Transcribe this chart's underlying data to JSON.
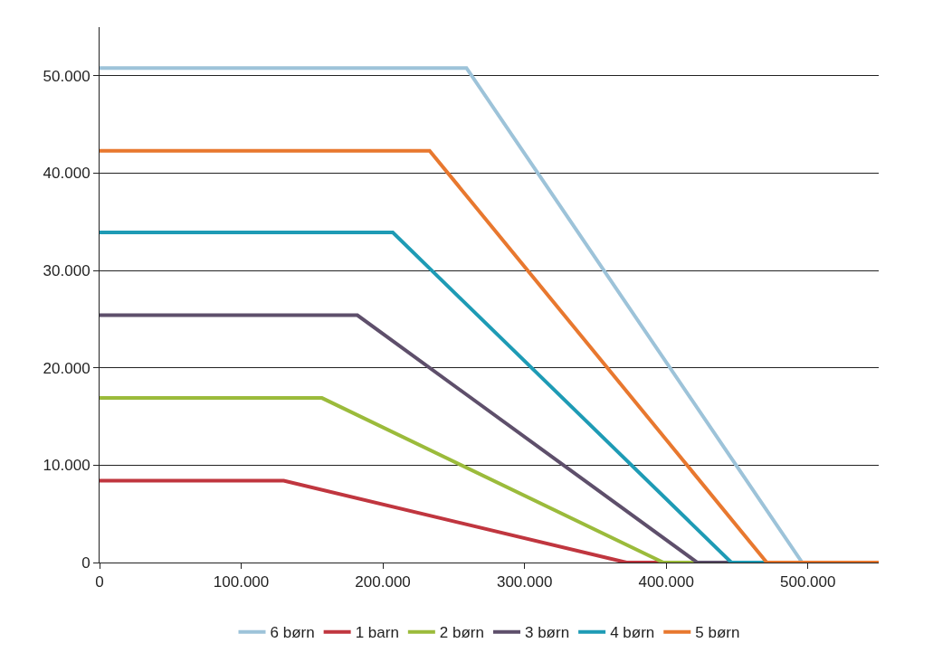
{
  "chart_data": {
    "type": "line",
    "series": [
      {
        "name": "6 børn",
        "color": "#9dc3d9",
        "x": [
          0,
          259000,
          496000,
          550000
        ],
        "values": [
          50800,
          50800,
          0,
          0
        ]
      },
      {
        "name": "1 barn",
        "color": "#c0363f",
        "x": [
          0,
          130000,
          372000,
          550000
        ],
        "values": [
          8400,
          8400,
          0,
          0
        ]
      },
      {
        "name": "2 børn",
        "color": "#9bbb3b",
        "x": [
          0,
          157000,
          398000,
          550000
        ],
        "values": [
          16900,
          16900,
          0,
          0
        ]
      },
      {
        "name": "3 børn",
        "color": "#5e4f6b",
        "x": [
          0,
          182000,
          422000,
          550000
        ],
        "values": [
          25400,
          25400,
          0,
          0
        ]
      },
      {
        "name": "4 børn",
        "color": "#1e9bb5",
        "x": [
          0,
          207000,
          446000,
          550000
        ],
        "values": [
          33900,
          33900,
          0,
          0
        ]
      },
      {
        "name": "5 børn",
        "color": "#e8782f",
        "x": [
          0,
          233000,
          471000,
          550000
        ],
        "values": [
          42300,
          42300,
          0,
          0
        ]
      }
    ],
    "xlim": [
      0,
      550000
    ],
    "xticks": [
      0,
      {
        "value": 100000,
        "label": "100.000"
      },
      {
        "value": 200000,
        "label": "200.000"
      },
      {
        "value": 300000,
        "label": "300.000"
      },
      {
        "value": 400000,
        "label": "400.000"
      },
      {
        "value": 500000,
        "label": "500.000"
      }
    ],
    "ylim": [
      0,
      55000
    ],
    "yticks": [
      0,
      {
        "value": 10000,
        "label": "10.000"
      },
      {
        "value": 20000,
        "label": "20.000"
      },
      {
        "value": 30000,
        "label": "30.000"
      },
      {
        "value": 40000,
        "label": "40.000"
      },
      {
        "value": 50000,
        "label": "50.000"
      }
    ],
    "grid": "y",
    "legend": "bottom",
    "marker": "none",
    "line_style": "solid"
  }
}
